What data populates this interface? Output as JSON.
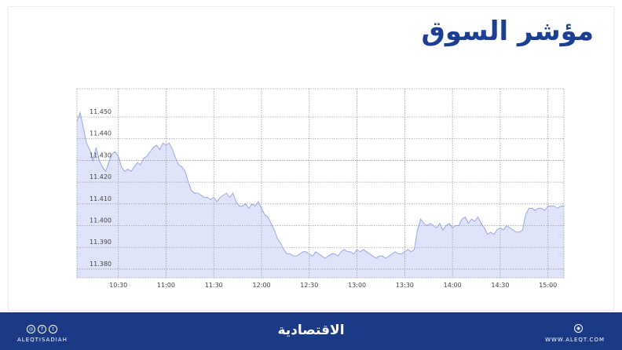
{
  "title": "مؤشر السوق",
  "footer": {
    "handle": "ALEQTISADIAH",
    "brand": "الاقتصادية",
    "website": "WWW.ALEQT.COM",
    "social_icons": [
      "instagram-icon",
      "facebook-icon",
      "twitter-icon"
    ],
    "web_icon": "globe-icon",
    "background": "#1a3a86"
  },
  "chart_data": {
    "type": "area",
    "title": "مؤشر السوق",
    "xlabel": "",
    "ylabel": "",
    "x_ticks": [
      "10:30",
      "11:00",
      "11:30",
      "12:00",
      "12:30",
      "13:00",
      "13:30",
      "14:00",
      "14:30",
      "15:00"
    ],
    "y_ticks": [
      "11.380",
      "11.390",
      "11.400",
      "11.410",
      "11.420",
      "11.430",
      "11.440",
      "11.450"
    ],
    "xlim": [
      "10:04",
      "15:10"
    ],
    "ylim": [
      11.376,
      11.463
    ],
    "grid": true,
    "colors": {
      "fill": "#dfe4fb",
      "line": "#9aa6e8",
      "grid": "#9a9a9a",
      "text": "#444444"
    },
    "series": [
      {
        "values": [
          [
            "10:04",
            11.448
          ],
          [
            "10:06",
            11.452
          ],
          [
            "10:08",
            11.445
          ],
          [
            "10:10",
            11.438
          ],
          [
            "10:12",
            11.435
          ],
          [
            "10:14",
            11.43
          ],
          [
            "10:16",
            11.436
          ],
          [
            "10:18",
            11.43
          ],
          [
            "10:20",
            11.427
          ],
          [
            "10:22",
            11.425
          ],
          [
            "10:24",
            11.429
          ],
          [
            "10:26",
            11.433
          ],
          [
            "10:28",
            11.434
          ],
          [
            "10:30",
            11.432
          ],
          [
            "10:32",
            11.427
          ],
          [
            "10:34",
            11.425
          ],
          [
            "10:36",
            11.426
          ],
          [
            "10:38",
            11.425
          ],
          [
            "10:40",
            11.427
          ],
          [
            "10:42",
            11.429
          ],
          [
            "10:44",
            11.428
          ],
          [
            "10:46",
            11.431
          ],
          [
            "10:48",
            11.432
          ],
          [
            "10:50",
            11.434
          ],
          [
            "10:52",
            11.436
          ],
          [
            "10:54",
            11.437
          ],
          [
            "10:56",
            11.435
          ],
          [
            "10:58",
            11.438
          ],
          [
            "11:00",
            11.437
          ],
          [
            "11:02",
            11.438
          ],
          [
            "11:04",
            11.435
          ],
          [
            "11:06",
            11.431
          ],
          [
            "11:08",
            11.428
          ],
          [
            "11:10",
            11.427
          ],
          [
            "11:12",
            11.425
          ],
          [
            "11:14",
            11.42
          ],
          [
            "11:16",
            11.416
          ],
          [
            "11:18",
            11.415
          ],
          [
            "11:20",
            11.415
          ],
          [
            "11:22",
            11.414
          ],
          [
            "11:24",
            11.413
          ],
          [
            "11:26",
            11.413
          ],
          [
            "11:28",
            11.412
          ],
          [
            "11:30",
            11.413
          ],
          [
            "11:32",
            11.411
          ],
          [
            "11:34",
            11.413
          ],
          [
            "11:36",
            11.414
          ],
          [
            "11:38",
            11.415
          ],
          [
            "11:40",
            11.413
          ],
          [
            "11:42",
            11.415
          ],
          [
            "11:44",
            11.411
          ],
          [
            "11:46",
            11.409
          ],
          [
            "11:48",
            11.409
          ],
          [
            "11:50",
            11.41
          ],
          [
            "11:52",
            11.408
          ],
          [
            "11:54",
            11.41
          ],
          [
            "11:56",
            11.409
          ],
          [
            "11:58",
            11.411
          ],
          [
            "12:00",
            11.408
          ],
          [
            "12:02",
            11.405
          ],
          [
            "12:04",
            11.404
          ],
          [
            "12:06",
            11.401
          ],
          [
            "12:08",
            11.398
          ],
          [
            "12:10",
            11.394
          ],
          [
            "12:12",
            11.392
          ],
          [
            "12:14",
            11.389
          ],
          [
            "12:16",
            11.387
          ],
          [
            "12:18",
            11.387
          ],
          [
            "12:20",
            11.386
          ],
          [
            "12:22",
            11.386
          ],
          [
            "12:24",
            11.387
          ],
          [
            "12:26",
            11.388
          ],
          [
            "12:28",
            11.388
          ],
          [
            "12:30",
            11.387
          ],
          [
            "12:32",
            11.386
          ],
          [
            "12:34",
            11.388
          ],
          [
            "12:36",
            11.387
          ],
          [
            "12:38",
            11.386
          ],
          [
            "12:40",
            11.385
          ],
          [
            "12:42",
            11.386
          ],
          [
            "12:44",
            11.387
          ],
          [
            "12:46",
            11.387
          ],
          [
            "12:48",
            11.386
          ],
          [
            "12:50",
            11.388
          ],
          [
            "12:52",
            11.389
          ],
          [
            "12:54",
            11.388
          ],
          [
            "12:56",
            11.388
          ],
          [
            "12:58",
            11.387
          ],
          [
            "13:00",
            11.389
          ],
          [
            "13:02",
            11.388
          ],
          [
            "13:04",
            11.389
          ],
          [
            "13:06",
            11.388
          ],
          [
            "13:08",
            11.387
          ],
          [
            "13:10",
            11.386
          ],
          [
            "13:12",
            11.385
          ],
          [
            "13:14",
            11.386
          ],
          [
            "13:16",
            11.386
          ],
          [
            "13:18",
            11.385
          ],
          [
            "13:20",
            11.386
          ],
          [
            "13:22",
            11.387
          ],
          [
            "13:24",
            11.388
          ],
          [
            "13:26",
            11.387
          ],
          [
            "13:28",
            11.387
          ],
          [
            "13:30",
            11.388
          ],
          [
            "13:32",
            11.389
          ],
          [
            "13:34",
            11.388
          ],
          [
            "13:36",
            11.389
          ],
          [
            "13:38",
            11.398
          ],
          [
            "13:40",
            11.403
          ],
          [
            "13:42",
            11.401
          ],
          [
            "13:44",
            11.4
          ],
          [
            "13:46",
            11.401
          ],
          [
            "13:48",
            11.4
          ],
          [
            "13:50",
            11.399
          ],
          [
            "13:52",
            11.401
          ],
          [
            "13:54",
            11.398
          ],
          [
            "13:56",
            11.4
          ],
          [
            "13:58",
            11.401
          ],
          [
            "14:00",
            11.399
          ],
          [
            "14:02",
            11.4
          ],
          [
            "14:04",
            11.4
          ],
          [
            "14:06",
            11.403
          ],
          [
            "14:08",
            11.404
          ],
          [
            "14:10",
            11.401
          ],
          [
            "14:12",
            11.403
          ],
          [
            "14:14",
            11.402
          ],
          [
            "14:16",
            11.404
          ],
          [
            "14:18",
            11.401
          ],
          [
            "14:20",
            11.399
          ],
          [
            "14:22",
            11.396
          ],
          [
            "14:24",
            11.397
          ],
          [
            "14:26",
            11.396
          ],
          [
            "14:28",
            11.398
          ],
          [
            "14:30",
            11.399
          ],
          [
            "14:32",
            11.398
          ],
          [
            "14:34",
            11.4
          ],
          [
            "14:36",
            11.399
          ],
          [
            "14:38",
            11.398
          ],
          [
            "14:40",
            11.397
          ],
          [
            "14:42",
            11.397
          ],
          [
            "14:44",
            11.398
          ],
          [
            "14:46",
            11.405
          ],
          [
            "14:48",
            11.408
          ],
          [
            "14:50",
            11.408
          ],
          [
            "14:52",
            11.407
          ],
          [
            "14:54",
            11.408
          ],
          [
            "14:56",
            11.408
          ],
          [
            "14:58",
            11.407
          ],
          [
            "15:00",
            11.409
          ],
          [
            "15:02",
            11.409
          ],
          [
            "15:04",
            11.409
          ],
          [
            "15:06",
            11.408
          ],
          [
            "15:08",
            11.409
          ],
          [
            "15:10",
            11.409
          ]
        ]
      }
    ]
  }
}
